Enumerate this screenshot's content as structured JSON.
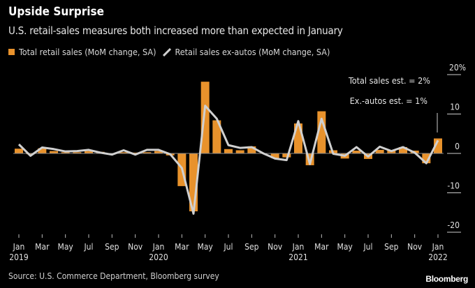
{
  "header": {
    "title": "Upside Surprise",
    "subtitle": "U.S. retail-sales measures both increased more than expected in January"
  },
  "legend": {
    "total": "Total retail sales (MoM change, SA)",
    "exautos": "Retail sales ex-autos (MoM change, SA)"
  },
  "annotations": {
    "total_est": "Total sales est. = 2%",
    "exautos_est": "Ex.-autos est. = 1%"
  },
  "footer": {
    "source": "Source: U.S. Commerce Department, Bloomberg survey",
    "logo": "Bloomberg"
  },
  "colors": {
    "bar": "#e8922c",
    "line": "#d0d0d0",
    "background": "#000000"
  },
  "chart_data": {
    "type": "bar+line",
    "title": "Upside Surprise",
    "ylim": [
      -20,
      20
    ],
    "yticks": [
      {
        "v": 20,
        "label": "20%"
      },
      {
        "v": 10,
        "label": "10"
      },
      {
        "v": 0,
        "label": "0"
      },
      {
        "v": -10,
        "label": "-10"
      },
      {
        "v": -20,
        "label": "-20"
      }
    ],
    "xtick_labels": [
      {
        "i": 0,
        "month": "Jan",
        "year": "2019"
      },
      {
        "i": 2,
        "month": "Mar"
      },
      {
        "i": 4,
        "month": "May"
      },
      {
        "i": 6,
        "month": "Jul"
      },
      {
        "i": 8,
        "month": "Sep"
      },
      {
        "i": 10,
        "month": "Nov"
      },
      {
        "i": 12,
        "month": "Jan",
        "year": "2020"
      },
      {
        "i": 14,
        "month": "Mar"
      },
      {
        "i": 16,
        "month": "May"
      },
      {
        "i": 18,
        "month": "Jul"
      },
      {
        "i": 20,
        "month": "Sep"
      },
      {
        "i": 22,
        "month": "Nov"
      },
      {
        "i": 24,
        "month": "Jan",
        "year": "2021"
      },
      {
        "i": 26,
        "month": "Mar"
      },
      {
        "i": 28,
        "month": "May"
      },
      {
        "i": 30,
        "month": "Jul"
      },
      {
        "i": 32,
        "month": "Sep"
      },
      {
        "i": 34,
        "month": "Nov"
      },
      {
        "i": 36,
        "month": "Jan",
        "year": "2022"
      }
    ],
    "x_range": "Jan 2019 – Jan 2022 (monthly)",
    "series": [
      {
        "name": "Total retail sales (MoM change, SA)",
        "type": "bar",
        "values": [
          1.2,
          -0.2,
          1.3,
          0.6,
          0.3,
          0.3,
          0.6,
          0.4,
          -0.2,
          0.3,
          0.2,
          0.3,
          0.6,
          -0.5,
          -8.3,
          -14.7,
          18.2,
          8.4,
          1.1,
          0.8,
          1.8,
          -0.1,
          -1.2,
          -1.0,
          7.6,
          -3.0,
          10.7,
          0.8,
          -1.3,
          0.7,
          -1.4,
          0.9,
          0.8,
          1.6,
          0.7,
          -2.5,
          3.8
        ]
      },
      {
        "name": "Retail sales ex-autos (MoM change, SA)",
        "type": "line",
        "values": [
          2.3,
          -0.6,
          1.5,
          1.1,
          0.5,
          0.6,
          0.9,
          0.2,
          -0.3,
          0.8,
          -0.3,
          0.9,
          0.9,
          -0.2,
          -3.7,
          -15.3,
          12.1,
          8.8,
          2.1,
          1.4,
          1.6,
          0.0,
          -1.3,
          -1.7,
          8.2,
          -2.7,
          8.8,
          -0.1,
          -0.6,
          1.6,
          -0.8,
          1.7,
          0.6,
          1.6,
          0.2,
          -2.5,
          3.3
        ]
      }
    ]
  }
}
